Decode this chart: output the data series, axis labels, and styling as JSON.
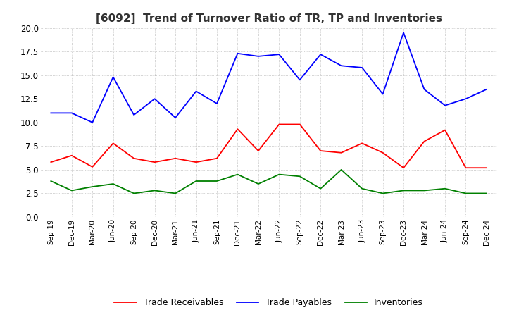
{
  "title": "[6092]  Trend of Turnover Ratio of TR, TP and Inventories",
  "ylim": [
    0.0,
    20.0
  ],
  "yticks": [
    0.0,
    2.5,
    5.0,
    7.5,
    10.0,
    12.5,
    15.0,
    17.5,
    20.0
  ],
  "ytick_labels": [
    "0.0",
    "2.5",
    "5.0",
    "7.5",
    "10.0",
    "12.5",
    "15.0",
    "17.5",
    "20.0"
  ],
  "x_labels": [
    "Sep-19",
    "Dec-19",
    "Mar-20",
    "Jun-20",
    "Sep-20",
    "Dec-20",
    "Mar-21",
    "Jun-21",
    "Sep-21",
    "Dec-21",
    "Mar-22",
    "Jun-22",
    "Sep-22",
    "Dec-22",
    "Mar-23",
    "Jun-23",
    "Sep-23",
    "Dec-23",
    "Mar-24",
    "Jun-24",
    "Sep-24",
    "Dec-24"
  ],
  "trade_receivables": [
    5.8,
    6.5,
    5.3,
    7.8,
    6.2,
    5.8,
    6.2,
    5.8,
    6.2,
    9.3,
    7.0,
    9.8,
    9.8,
    7.0,
    6.8,
    7.8,
    6.8,
    5.2,
    8.0,
    9.2,
    5.2,
    5.2
  ],
  "trade_payables": [
    11.0,
    11.0,
    10.0,
    14.8,
    10.8,
    12.5,
    10.5,
    13.3,
    12.0,
    17.3,
    17.0,
    17.2,
    14.5,
    17.2,
    16.0,
    15.8,
    13.0,
    19.5,
    13.5,
    11.8,
    12.5,
    13.5
  ],
  "inventories": [
    3.8,
    2.8,
    3.2,
    3.5,
    2.5,
    2.8,
    2.5,
    3.8,
    3.8,
    4.5,
    3.5,
    4.5,
    4.3,
    3.0,
    5.0,
    3.0,
    2.5,
    2.8,
    2.8,
    3.0,
    2.5,
    2.5
  ],
  "tr_color": "#ff0000",
  "tp_color": "#0000ff",
  "inv_color": "#008000",
  "background_color": "#ffffff",
  "grid_color": "#aaaaaa",
  "legend_labels": [
    "Trade Receivables",
    "Trade Payables",
    "Inventories"
  ]
}
